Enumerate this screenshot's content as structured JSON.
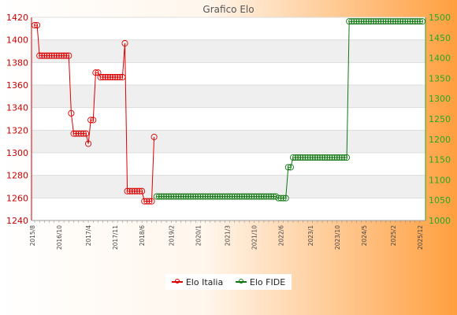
{
  "chart_data": {
    "type": "line",
    "title": "Grafico Elo",
    "left_axis": {
      "min": 1240,
      "max": 1420,
      "step": 20,
      "color": "#cc0000"
    },
    "right_axis": {
      "min": 1000,
      "max": 1500,
      "step": 50,
      "color": "#22aa22"
    },
    "x_label_samples": [
      "2015/8",
      "2016/10",
      "2017/4",
      "2017/11",
      "2018/6",
      "2019/2",
      "2020/1",
      "2021/3",
      "2021/10",
      "2022/6",
      "2023/1",
      "2023/10",
      "2024/5",
      "2025/2",
      "2025/12"
    ],
    "series": [
      {
        "name": "Elo Italia",
        "axis": "left",
        "color": "#dd0000",
        "points": [
          [
            0,
            1413
          ],
          [
            1,
            1413
          ],
          [
            2,
            1386
          ],
          [
            3,
            1386
          ],
          [
            4,
            1386
          ],
          [
            5,
            1386
          ],
          [
            6,
            1386
          ],
          [
            7,
            1386
          ],
          [
            8,
            1386
          ],
          [
            9,
            1386
          ],
          [
            10,
            1386
          ],
          [
            11,
            1386
          ],
          [
            12,
            1386
          ],
          [
            13,
            1386
          ],
          [
            14,
            1386
          ],
          [
            15,
            1335
          ],
          [
            16,
            1317
          ],
          [
            17,
            1317
          ],
          [
            18,
            1317
          ],
          [
            19,
            1317
          ],
          [
            20,
            1317
          ],
          [
            21,
            1317
          ],
          [
            22,
            1308
          ],
          [
            23,
            1329
          ],
          [
            24,
            1329
          ],
          [
            25,
            1371
          ],
          [
            26,
            1371
          ],
          [
            27,
            1367
          ],
          [
            28,
            1367
          ],
          [
            29,
            1367
          ],
          [
            30,
            1367
          ],
          [
            31,
            1367
          ],
          [
            32,
            1367
          ],
          [
            33,
            1367
          ],
          [
            34,
            1367
          ],
          [
            35,
            1367
          ],
          [
            36,
            1367
          ],
          [
            37,
            1397
          ],
          [
            38,
            1266
          ],
          [
            39,
            1266
          ],
          [
            40,
            1266
          ],
          [
            41,
            1266
          ],
          [
            42,
            1266
          ],
          [
            43,
            1266
          ],
          [
            44,
            1266
          ],
          [
            45,
            1257
          ],
          [
            46,
            1257
          ],
          [
            47,
            1257
          ],
          [
            48,
            1257
          ],
          [
            49,
            1314
          ]
        ]
      },
      {
        "name": "Elo FIDE",
        "axis": "right",
        "color": "#117711",
        "points": [
          [
            50,
            1059
          ],
          [
            51,
            1059
          ],
          [
            52,
            1059
          ],
          [
            53,
            1059
          ],
          [
            54,
            1059
          ],
          [
            55,
            1059
          ],
          [
            56,
            1059
          ],
          [
            57,
            1059
          ],
          [
            58,
            1059
          ],
          [
            59,
            1059
          ],
          [
            60,
            1059
          ],
          [
            61,
            1059
          ],
          [
            62,
            1059
          ],
          [
            63,
            1059
          ],
          [
            64,
            1059
          ],
          [
            65,
            1059
          ],
          [
            66,
            1059
          ],
          [
            67,
            1059
          ],
          [
            68,
            1059
          ],
          [
            69,
            1059
          ],
          [
            70,
            1059
          ],
          [
            71,
            1059
          ],
          [
            72,
            1059
          ],
          [
            73,
            1059
          ],
          [
            74,
            1059
          ],
          [
            75,
            1059
          ],
          [
            76,
            1059
          ],
          [
            77,
            1059
          ],
          [
            78,
            1059
          ],
          [
            79,
            1059
          ],
          [
            80,
            1059
          ],
          [
            81,
            1059
          ],
          [
            82,
            1059
          ],
          [
            83,
            1059
          ],
          [
            84,
            1059
          ],
          [
            85,
            1059
          ],
          [
            86,
            1059
          ],
          [
            87,
            1059
          ],
          [
            88,
            1059
          ],
          [
            89,
            1059
          ],
          [
            90,
            1059
          ],
          [
            91,
            1059
          ],
          [
            92,
            1059
          ],
          [
            93,
            1059
          ],
          [
            94,
            1059
          ],
          [
            95,
            1059
          ],
          [
            96,
            1059
          ],
          [
            97,
            1059
          ],
          [
            98,
            1059
          ],
          [
            99,
            1059
          ],
          [
            100,
            1055
          ],
          [
            101,
            1055
          ],
          [
            102,
            1055
          ],
          [
            103,
            1055
          ],
          [
            104,
            1131
          ],
          [
            105,
            1131
          ],
          [
            106,
            1155
          ],
          [
            107,
            1155
          ],
          [
            108,
            1155
          ],
          [
            109,
            1155
          ],
          [
            110,
            1155
          ],
          [
            111,
            1155
          ],
          [
            112,
            1155
          ],
          [
            113,
            1155
          ],
          [
            114,
            1155
          ],
          [
            115,
            1155
          ],
          [
            116,
            1155
          ],
          [
            117,
            1155
          ],
          [
            118,
            1155
          ],
          [
            119,
            1155
          ],
          [
            120,
            1155
          ],
          [
            121,
            1155
          ],
          [
            122,
            1155
          ],
          [
            123,
            1155
          ],
          [
            124,
            1155
          ],
          [
            125,
            1155
          ],
          [
            126,
            1155
          ],
          [
            127,
            1155
          ],
          [
            128,
            1155
          ],
          [
            129,
            1490
          ],
          [
            130,
            1490
          ],
          [
            131,
            1490
          ],
          [
            132,
            1490
          ],
          [
            133,
            1490
          ],
          [
            134,
            1490
          ],
          [
            135,
            1490
          ],
          [
            136,
            1490
          ],
          [
            137,
            1490
          ],
          [
            138,
            1490
          ],
          [
            139,
            1490
          ],
          [
            140,
            1490
          ],
          [
            141,
            1490
          ],
          [
            142,
            1490
          ],
          [
            143,
            1490
          ],
          [
            144,
            1490
          ],
          [
            145,
            1490
          ],
          [
            146,
            1490
          ],
          [
            147,
            1490
          ],
          [
            148,
            1490
          ],
          [
            149,
            1490
          ],
          [
            150,
            1490
          ],
          [
            151,
            1490
          ],
          [
            152,
            1490
          ],
          [
            153,
            1490
          ],
          [
            154,
            1490
          ],
          [
            155,
            1490
          ],
          [
            156,
            1490
          ],
          [
            157,
            1490
          ],
          [
            158,
            1490
          ],
          [
            159,
            1490
          ]
        ]
      }
    ],
    "grid": true,
    "legend_position": "bottom-center"
  }
}
